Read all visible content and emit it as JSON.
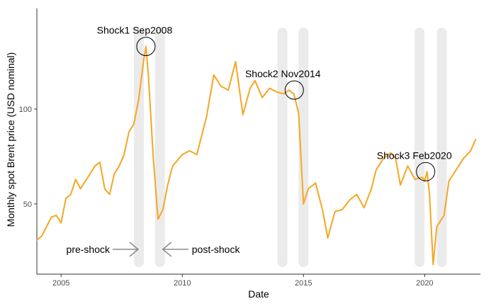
{
  "chart_data": {
    "type": "line",
    "xlabel": "Date",
    "ylabel": "Monthly spot Brent price (USD nominal)",
    "xlim": [
      2004.0,
      2022.3
    ],
    "ylim": [
      13,
      153
    ],
    "x_ticks": [
      {
        "value": 2005,
        "label": "2005"
      },
      {
        "value": 2010,
        "label": "2010"
      },
      {
        "value": 2015,
        "label": "2015"
      },
      {
        "value": 2020,
        "label": "2020"
      }
    ],
    "y_ticks": [
      {
        "value": 50,
        "label": "50"
      },
      {
        "value": 100,
        "label": "100"
      }
    ],
    "grid": false,
    "line_color": "#f5a623",
    "band_color": "#ebebeb",
    "shock_bands": [
      2008.21,
      2009.08,
      2014.13,
      2015.0,
      2019.79,
      2020.71
    ],
    "shocks": [
      {
        "label": "Shock1 Sep2008",
        "x": 2008.5,
        "y": 133
      },
      {
        "label": "Shock2 Nov2014",
        "x": 2014.62,
        "y": 110
      },
      {
        "label": "Shock3 Feb2020",
        "x": 2020.04,
        "y": 67
      }
    ],
    "window_annotations": [
      {
        "label": "pre-shock",
        "direction": "right"
      },
      {
        "label": "post-shock",
        "direction": "left"
      }
    ],
    "series": [
      {
        "x": [
          2004.0,
          2004.2,
          2004.4,
          2004.6,
          2004.8,
          2005.0,
          2005.2,
          2005.4,
          2005.6,
          2005.8,
          2006.0,
          2006.2,
          2006.4,
          2006.6,
          2006.8,
          2007.0,
          2007.2,
          2007.4,
          2007.6,
          2007.8,
          2008.0,
          2008.2,
          2008.4,
          2008.5,
          2008.6,
          2008.8,
          2009.0,
          2009.2,
          2009.4,
          2009.6,
          2009.8,
          2010.0,
          2010.3,
          2010.6,
          2011.0,
          2011.3,
          2011.6,
          2011.9,
          2012.2,
          2012.5,
          2012.8,
          2013.0,
          2013.3,
          2013.6,
          2013.9,
          2014.2,
          2014.4,
          2014.6,
          2014.8,
          2015.0,
          2015.2,
          2015.5,
          2015.8,
          2016.0,
          2016.3,
          2016.6,
          2016.9,
          2017.2,
          2017.5,
          2017.8,
          2018.0,
          2018.3,
          2018.6,
          2018.8,
          2019.0,
          2019.3,
          2019.6,
          2019.9,
          2020.0,
          2020.1,
          2020.2,
          2020.35,
          2020.5,
          2020.8,
          2021.0,
          2021.3,
          2021.6,
          2021.9,
          2022.1
        ],
        "values": [
          31,
          33,
          38,
          43,
          44,
          40,
          53,
          55,
          63,
          58,
          62,
          66,
          70,
          72,
          58,
          55,
          66,
          70,
          76,
          88,
          92,
          105,
          125,
          133,
          118,
          75,
          42,
          47,
          60,
          70,
          73,
          76,
          78,
          76,
          96,
          118,
          112,
          110,
          125,
          97,
          111,
          115,
          106,
          111,
          109,
          108,
          110,
          108,
          98,
          50,
          58,
          61,
          46,
          32,
          46,
          47,
          52,
          55,
          48,
          58,
          68,
          74,
          77,
          74,
          60,
          70,
          63,
          64,
          62,
          67,
          55,
          18,
          38,
          44,
          62,
          68,
          74,
          78,
          84
        ]
      }
    ]
  }
}
